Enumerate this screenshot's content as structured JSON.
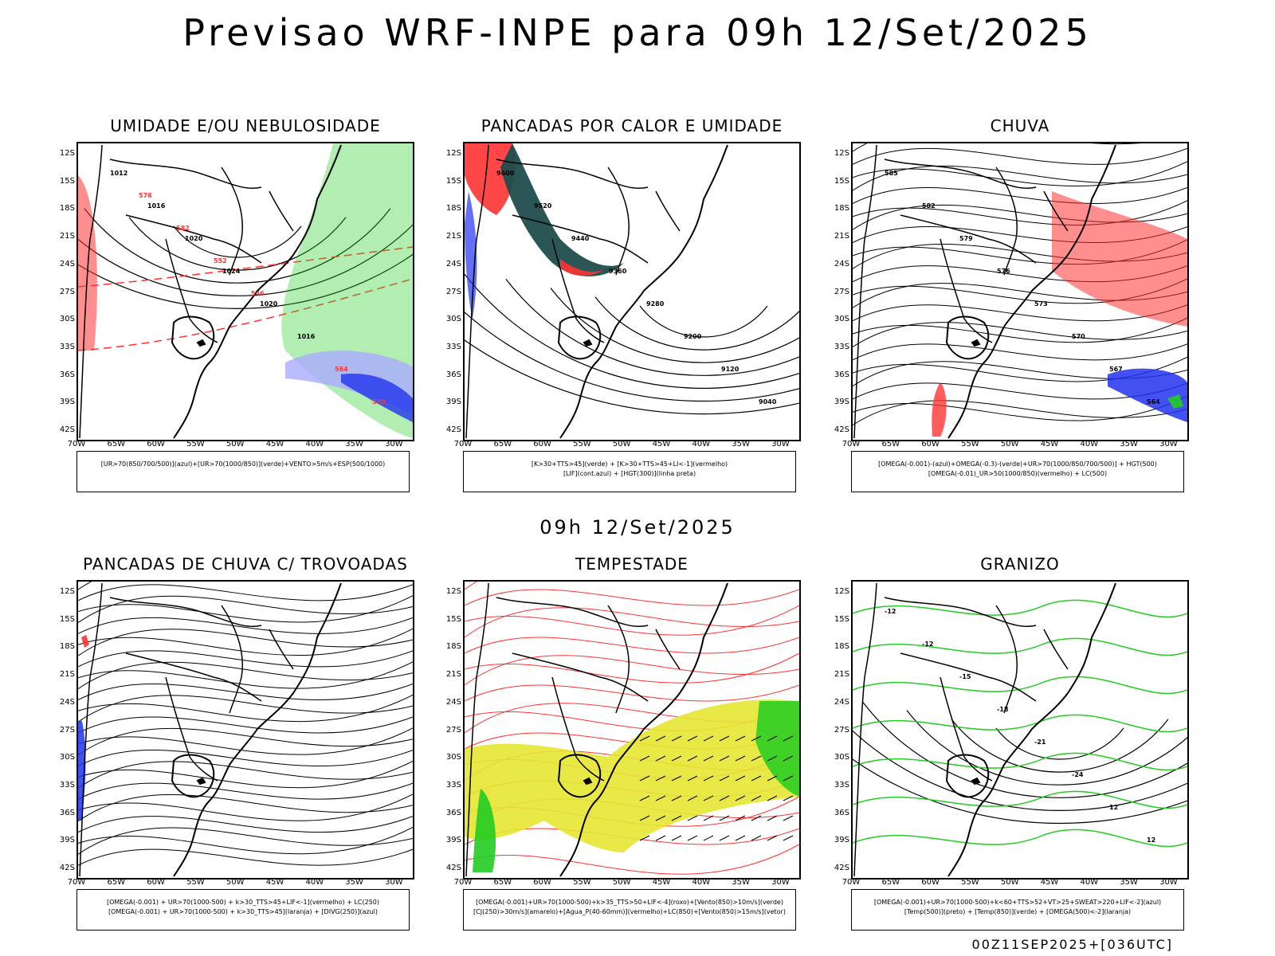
{
  "main_title": "Previsao WRF-INPE  para 09h 12/Set/2025",
  "middle_title": "09h 12/Set/2025",
  "footer": "00Z11SEP2025+[036UTC]",
  "lat_labels": [
    "12S",
    "15S",
    "18S",
    "21S",
    "24S",
    "27S",
    "30S",
    "33S",
    "36S",
    "39S",
    "42S"
  ],
  "lon_labels": [
    "70W",
    "65W",
    "60W",
    "55W",
    "50W",
    "45W",
    "40W",
    "35W",
    "30W"
  ],
  "panels": [
    {
      "title": "UMIDADE E/OU NEBULOSIDADE",
      "legend": [
        "[UR>70(850/700/500)](azul)+[UR>70(1000/850)](verde)+VENTO>5m/s+ESP(500/1000)"
      ],
      "contour_labels": [
        "1012",
        "1016",
        "1020",
        "1024",
        "1020",
        "1016",
        "564",
        "570",
        "576",
        "582",
        "552",
        "546"
      ]
    },
    {
      "title": "PANCADAS POR CALOR E UMIDADE",
      "legend": [
        "[K>30+TTS>45](verde) + [K>30+TTS>45+LI<-1](vermelho)",
        "[LIF](cont.azul) + [HGT(300)](linha preta)"
      ],
      "contour_labels": [
        "9600",
        "9520",
        "9440",
        "9360",
        "9280",
        "9200",
        "9120",
        "9040"
      ]
    },
    {
      "title": "CHUVA",
      "legend": [
        "[OMEGA(-0.001)-(azul)+OMEGA(-0.3)-(verde)+UR>70(1000/850/700/500)] + HGT(500)",
        "[OMEGA(-0.01)_UR>50(1000/850)(vermelho) + LC(500)"
      ],
      "contour_labels": [
        "585",
        "582",
        "579",
        "576",
        "573",
        "570",
        "567",
        "564"
      ]
    },
    {
      "title": "PANCADAS DE CHUVA C/ TROVOADAS",
      "legend": [
        "[OMEGA(-0.001) + UR>70(1000-500) + k>30_TTS>45+LIF<-1](vermelho) + LC(250)",
        "[OMEGA(-0.001) + UR>70(1000-500) + k>30_TTS>45](laranja) + [DIVG(250)](azul)"
      ],
      "contour_labels": []
    },
    {
      "title": "TEMPESTADE",
      "legend": [
        "[OMEGA(-0.001)+UR>70(1000-500)+k>35_TTS>50+LIF<-4](roxo)+[Vento(850)>10m/s](verde)",
        "[CJ(250)>30m/s](amarelo)+[Agua_P(40-60mm)](vermelho)+LC(850)+[Vento(850)>15m/s](vetor)"
      ],
      "contour_labels": []
    },
    {
      "title": "GRANIZO",
      "legend": [
        "[OMEGA(-0.001)+UR>70(1000-500)+k<60+TTS>52+VT>25+SWEAT>220+LIF<-2](azul)",
        "[Temp(500)](preto) + [Temp(850)](verde) + [OMEGA(500)<-2](laranja)"
      ],
      "contour_labels": [
        "-12",
        "-12",
        "-15",
        "-18",
        "-21",
        "-24",
        "12",
        "12"
      ]
    }
  ],
  "colors": {
    "red": "#ff3333",
    "green": "#22cc22",
    "blue": "#2233ee",
    "lightblue": "#aaaaff",
    "darkteal": "#1f4d4d",
    "yellow": "#e6e633"
  }
}
